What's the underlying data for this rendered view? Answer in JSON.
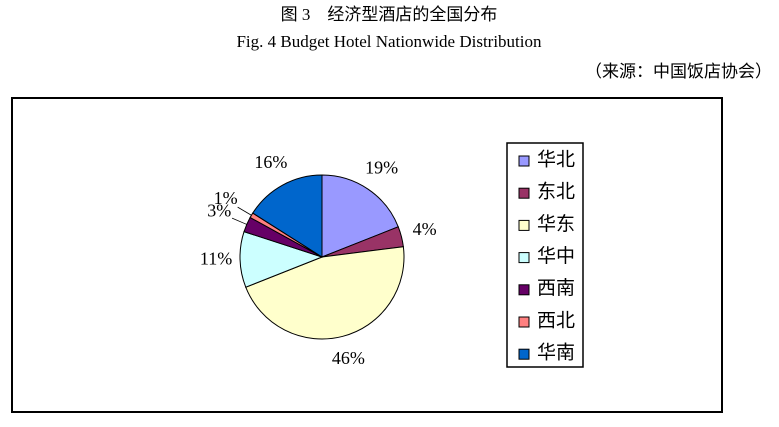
{
  "chart_data": {
    "type": "pie",
    "title": "图 3　经济型酒店的全国分布",
    "subtitle": "Fig. 4 Budget Hotel Nationwide Distribution",
    "source": "（来源：中国饭店协会）",
    "categories": [
      "华北",
      "东北",
      "华东",
      "华中",
      "西南",
      "西北",
      "华南"
    ],
    "values": [
      19,
      4,
      46,
      11,
      3,
      1,
      16
    ],
    "value_labels": [
      "19%",
      "4%",
      "46%",
      "11%",
      "3%",
      "1%",
      "16%"
    ],
    "colors": [
      "#9999ff",
      "#993366",
      "#ffffcc",
      "#ccffff",
      "#660066",
      "#ff8080",
      "#0066cc"
    ],
    "legend": "right"
  }
}
